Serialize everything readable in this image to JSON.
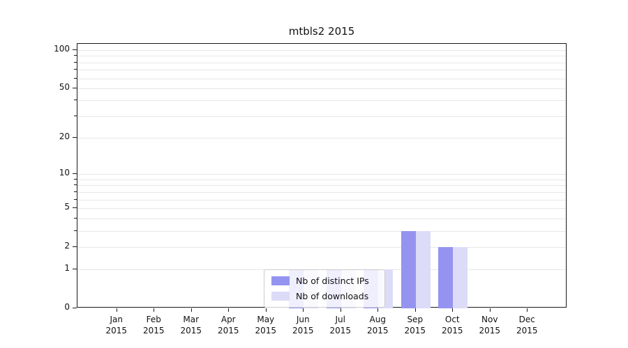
{
  "title": "mtbls2 2015",
  "chart_data": {
    "type": "bar",
    "title": "mtbls2 2015",
    "xlabel": "",
    "ylabel": "",
    "categories": [
      "Jan 2015",
      "Feb 2015",
      "Mar 2015",
      "Apr 2015",
      "May 2015",
      "Jun 2015",
      "Jul 2015",
      "Aug 2015",
      "Sep 2015",
      "Oct 2015",
      "Nov 2015",
      "Dec 2015"
    ],
    "series": [
      {
        "name": "Nb of distinct IPs",
        "color": "#9494f0",
        "values": [
          0,
          0,
          0,
          0,
          0,
          1,
          1,
          1,
          3,
          2,
          0,
          0
        ]
      },
      {
        "name": "Nb of downloads",
        "color": "#dcdcf8",
        "values": [
          0,
          0,
          0,
          0,
          0,
          1,
          1,
          1,
          3,
          2,
          0,
          0
        ]
      }
    ],
    "y_ticks": [
      0,
      1,
      2,
      5,
      10,
      20,
      50,
      100
    ],
    "y_minor_ticks": [
      1,
      2,
      3,
      4,
      5,
      6,
      7,
      8,
      9,
      10,
      20,
      30,
      40,
      50,
      60,
      70,
      80,
      90,
      100
    ],
    "scale": "log(1+v)",
    "ylim": [
      0,
      100
    ],
    "grid": "horizontal",
    "legend_position": "inside-bottom-center"
  }
}
